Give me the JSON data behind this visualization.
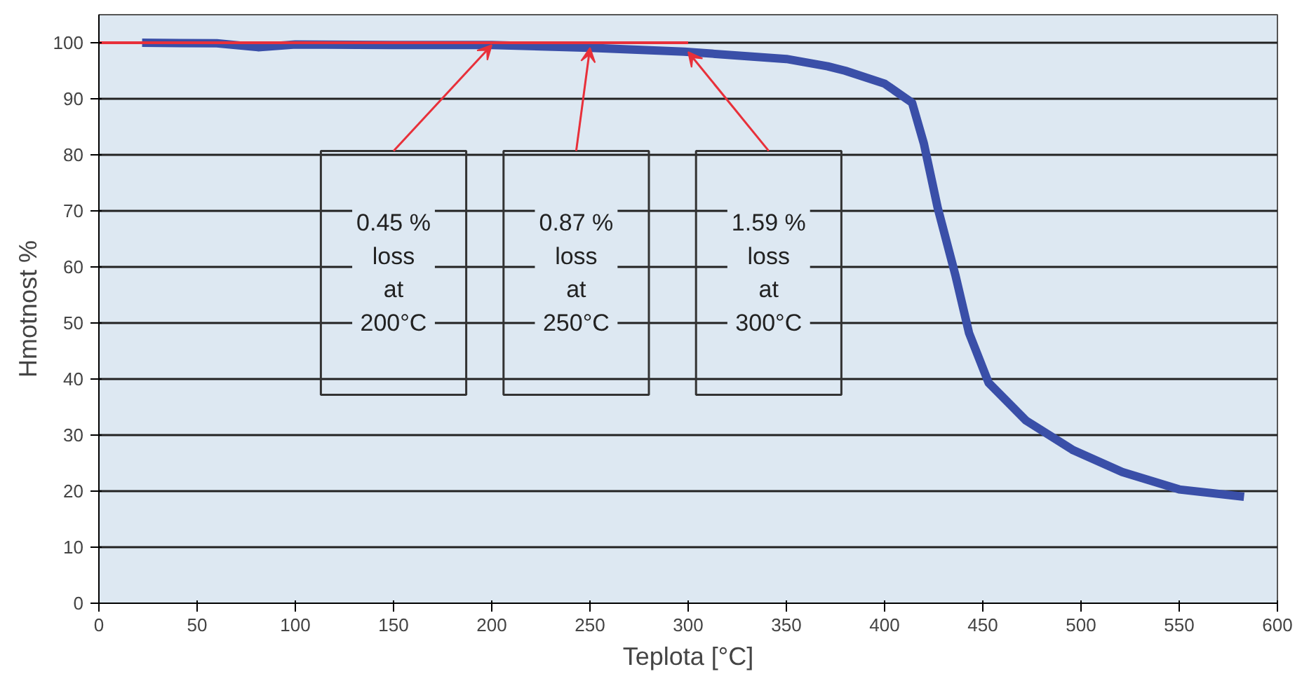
{
  "chart_data": {
    "type": "line",
    "xlabel": "Teplota [°C]",
    "ylabel": "Hmotnost %",
    "xlim": [
      0,
      600
    ],
    "ylim": [
      0,
      105
    ],
    "xticks": [
      0,
      50,
      100,
      150,
      200,
      250,
      300,
      350,
      400,
      450,
      500,
      550,
      600
    ],
    "yticks": [
      0,
      10,
      20,
      30,
      40,
      50,
      60,
      70,
      80,
      90,
      100
    ],
    "grid": "y",
    "series": [
      {
        "color": "#3a4fa8",
        "x": [
          22,
          60,
          81,
          100,
          150,
          200,
          250,
          298,
          330,
          350,
          371,
          380,
          400,
          414,
          420,
          427,
          436,
          443,
          453,
          472,
          496,
          521,
          550,
          583
        ],
        "values": [
          100,
          99.9,
          99.2,
          99.7,
          99.6,
          99.6,
          99.1,
          98.4,
          97.6,
          97.1,
          95.8,
          95,
          92.7,
          89.3,
          82,
          70.6,
          58.6,
          48.2,
          39.3,
          32.6,
          27.3,
          23.4,
          20.3,
          19.0
        ]
      },
      {
        "color": "#e8303a",
        "x": [
          0,
          300
        ],
        "values": [
          100,
          100
        ]
      }
    ],
    "annotations": [
      "0.45 %\nloss\nat\n200°C",
      "0.87 %\nloss\nat\n250°C",
      "1.59 %\nloss\nat\n300°C"
    ]
  }
}
